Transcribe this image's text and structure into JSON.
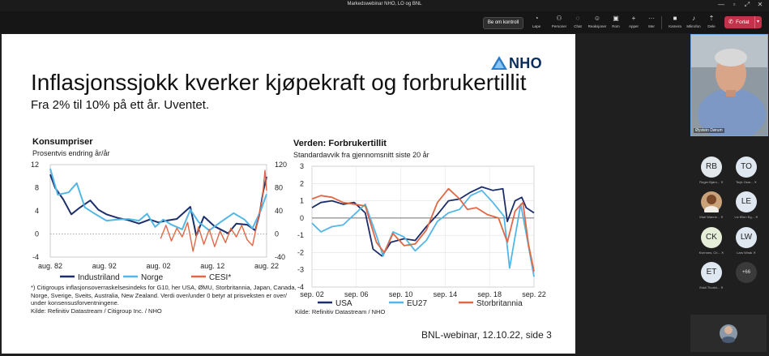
{
  "window": {
    "title": "Markedswebinar NHO, LO og BNL",
    "controls": [
      "—",
      "▫",
      "⤢",
      "✕"
    ]
  },
  "toolbar": {
    "control_label": "Be om kontroll",
    "items": [
      {
        "icon": "stopwatch-icon",
        "glyph": "◔",
        "label": "Løpe"
      },
      {
        "icon": "people-icon",
        "glyph": "⚇",
        "label": "Personer"
      },
      {
        "icon": "chat-icon",
        "glyph": "◌",
        "label": "Chat"
      },
      {
        "icon": "reactions-icon",
        "glyph": "☺",
        "label": "Reaksjoner"
      },
      {
        "icon": "rooms-icon",
        "glyph": "▣",
        "label": "Rom"
      },
      {
        "icon": "apps-icon",
        "glyph": "+",
        "label": "Apper"
      },
      {
        "icon": "more-icon",
        "glyph": "···",
        "label": "Mer"
      },
      {
        "icon": "camera-icon",
        "glyph": "■",
        "label": "Kamera"
      },
      {
        "icon": "microphone-icon",
        "glyph": "♪",
        "label": "Mikrofon"
      },
      {
        "icon": "share-icon",
        "glyph": "⇡",
        "label": "Dele"
      }
    ],
    "leave_label": "Forlat",
    "leave_glyph": "✆",
    "leave_chevron": "▾"
  },
  "slide": {
    "logo_text": "NHO",
    "headline": "Inflasjonssjokk kverker kjøpekraft og forbrukertillit",
    "subhead": "Fra 2% til 10% på ett år. Uventet.",
    "footnote": "*) Citigroups inflasjonsoverraskelsesindeks for G10, her USA, ØMU, Storbritannia, Japan, Canada, Norge, Sverige, Sveits, Australia, New Zealand. Verdi over/under 0 betyr at prisveksten er over/ under konsensusforventningene.",
    "source_left": "Kilde: Refinitiv Datastream / Citigroup Inc. / NHO",
    "source_right": "Kilde: Refinitiv Datastream / NHO",
    "page_footer": "BNL-webinar, 12.10.22, side 3"
  },
  "chart_data": [
    {
      "type": "line",
      "title": "Konsumpriser",
      "subtitle": "Prosentvis endring år/år",
      "x_ticks": [
        "aug. 82",
        "aug. 92",
        "aug. 02",
        "aug. 12",
        "aug. 22"
      ],
      "x_range": [
        1982.6,
        2022.6
      ],
      "y_left_ticks": [
        "12",
        "8",
        "4",
        "0",
        "-4"
      ],
      "y_left_range": [
        -4,
        12
      ],
      "y_right_ticks": [
        "120",
        "80",
        "40",
        "0",
        "-40"
      ],
      "y_right_range": [
        -40,
        120
      ],
      "grid": false,
      "legend_position": "bottom",
      "series": [
        {
          "name": "Industriland",
          "color": "#1c2f6b",
          "axis": "left",
          "x": [
            1982.6,
            1983.5,
            1985,
            1986.5,
            1988,
            1990,
            1991.5,
            1993,
            1995,
            1997,
            1999,
            2001,
            2002.6,
            2004,
            2006,
            2008.5,
            2009.6,
            2011,
            2013,
            2015.5,
            2017,
            2019,
            2020.5,
            2021.3,
            2022,
            2022.6
          ],
          "y": [
            10.3,
            8.0,
            6.0,
            3.4,
            4.5,
            5.8,
            4.2,
            3.4,
            2.8,
            2.4,
            1.8,
            2.5,
            2.0,
            2.3,
            2.6,
            4.7,
            -0.3,
            3.0,
            1.3,
            0.1,
            1.8,
            1.6,
            0.6,
            3.5,
            7.5,
            9.9
          ]
        },
        {
          "name": "Norge",
          "color": "#52b7e6",
          "axis": "left",
          "x": [
            1982.6,
            1984,
            1986,
            1987.5,
            1989,
            1991,
            1993,
            1995,
            1997,
            1999,
            2000.5,
            2002,
            2003.5,
            2005,
            2007,
            2008.5,
            2010,
            2012,
            2014,
            2016.5,
            2018.5,
            2020,
            2021.5,
            2022.6
          ],
          "y": [
            11.3,
            6.8,
            7.2,
            8.8,
            4.6,
            3.4,
            2.3,
            2.5,
            2.6,
            2.3,
            3.5,
            1.2,
            2.5,
            1.6,
            0.8,
            4.2,
            2.1,
            0.6,
            2.0,
            3.6,
            2.5,
            1.0,
            4.0,
            6.9
          ]
        },
        {
          "name": "CESI*",
          "color": "#e06846",
          "axis": "right",
          "x": [
            2003,
            2004,
            2005,
            2006,
            2007,
            2008,
            2009,
            2010,
            2011,
            2012,
            2013,
            2014,
            2015,
            2016,
            2017,
            2018,
            2019,
            2020,
            2021,
            2021.8,
            2022.3,
            2022.6
          ],
          "y": [
            -8,
            15,
            -12,
            10,
            -5,
            20,
            -30,
            12,
            -18,
            8,
            -22,
            5,
            -15,
            10,
            -5,
            15,
            -10,
            -20,
            25,
            60,
            110,
            75
          ]
        }
      ]
    },
    {
      "type": "line",
      "title": "Verden: Forbrukertillit",
      "subtitle": "Standardavvik fra gjennomsnitt siste 20 år",
      "x_ticks": [
        "sep. 02",
        "sep. 06",
        "sep. 10",
        "sep. 14",
        "sep. 18",
        "sep. 22"
      ],
      "x_range": [
        2002.7,
        2022.7
      ],
      "y_ticks": [
        "3",
        "2",
        "1",
        "0",
        "-1",
        "-2",
        "-3",
        "-4"
      ],
      "y_range": [
        -4,
        3
      ],
      "grid": true,
      "legend_position": "bottom",
      "series": [
        {
          "name": "USA",
          "color": "#1c2f6b",
          "x": [
            2002.7,
            2003.5,
            2004.5,
            2005.5,
            2006.5,
            2007.5,
            2008.2,
            2009,
            2009.8,
            2011,
            2012,
            2013,
            2014,
            2015,
            2016,
            2017,
            2018,
            2019,
            2019.9,
            2020.3,
            2021,
            2021.6,
            2022,
            2022.7
          ],
          "y": [
            0.6,
            0.9,
            1.0,
            0.8,
            0.9,
            0.3,
            -1.8,
            -2.2,
            -1.4,
            -1.2,
            -1.3,
            -0.5,
            0.2,
            1.0,
            1.1,
            1.5,
            1.8,
            1.6,
            1.7,
            -0.2,
            1.0,
            1.2,
            0.6,
            0.3
          ]
        },
        {
          "name": "EU27",
          "color": "#52b7e6",
          "x": [
            2002.7,
            2003.5,
            2004.5,
            2005.5,
            2006.5,
            2007.5,
            2008.5,
            2009.1,
            2010,
            2011,
            2012,
            2013,
            2014,
            2015,
            2016,
            2017,
            2018,
            2019,
            2020,
            2020.5,
            2021.5,
            2022,
            2022.7
          ],
          "y": [
            -0.3,
            -0.8,
            -0.5,
            -0.4,
            0.2,
            0.8,
            -1.0,
            -2.2,
            -0.8,
            -1.1,
            -1.9,
            -1.3,
            -0.2,
            0.3,
            0.5,
            1.3,
            1.6,
            0.9,
            0.1,
            -2.9,
            0.8,
            -0.9,
            -3.4
          ]
        },
        {
          "name": "Storbritannia",
          "color": "#e06846",
          "x": [
            2002.7,
            2003.5,
            2004.5,
            2005.5,
            2006.5,
            2007.5,
            2008.5,
            2009.2,
            2010,
            2011,
            2012,
            2013,
            2014,
            2015,
            2016,
            2016.7,
            2017.5,
            2018.5,
            2019.5,
            2020.3,
            2021,
            2021.7,
            2022.2,
            2022.7
          ],
          "y": [
            1.1,
            1.3,
            1.2,
            0.9,
            0.8,
            0.7,
            -1.4,
            -2.0,
            -0.9,
            -1.6,
            -1.5,
            -0.7,
            0.9,
            1.7,
            1.1,
            0.5,
            0.6,
            0.2,
            0.0,
            -1.4,
            0.4,
            0.9,
            -1.5,
            -3.1
          ]
        }
      ]
    }
  ],
  "speaker": {
    "name": "Øystein Dørum"
  },
  "participants": [
    {
      "initials": "RB",
      "name": "Roger Bjørn...",
      "color": "#e3e8ec",
      "mic": "✕"
    },
    {
      "initials": "TO",
      "name": "Terje Osm...",
      "color": "#dfe8f1",
      "mic": "✕"
    },
    {
      "initials": "",
      "name": "Mari Wanne...",
      "color": "#c9a27a",
      "mic": "✕"
    },
    {
      "initials": "LE",
      "name": "Liv Ellen Eg...",
      "color": "#dfe8f1",
      "mic": "✕"
    },
    {
      "initials": "CK",
      "name": "Kvennes, Ch...",
      "color": "#e6edd8",
      "mic": "✕"
    },
    {
      "initials": "LW",
      "name": "Lars Wirak",
      "color": "#dfe8f1",
      "mic": "✕"
    },
    {
      "initials": "ET",
      "name": "Eskil Thorkil...",
      "color": "#dfe8f1",
      "mic": "✕"
    },
    {
      "initials": "+66",
      "name": "",
      "color": "#3a3a3a",
      "mic": ""
    }
  ]
}
